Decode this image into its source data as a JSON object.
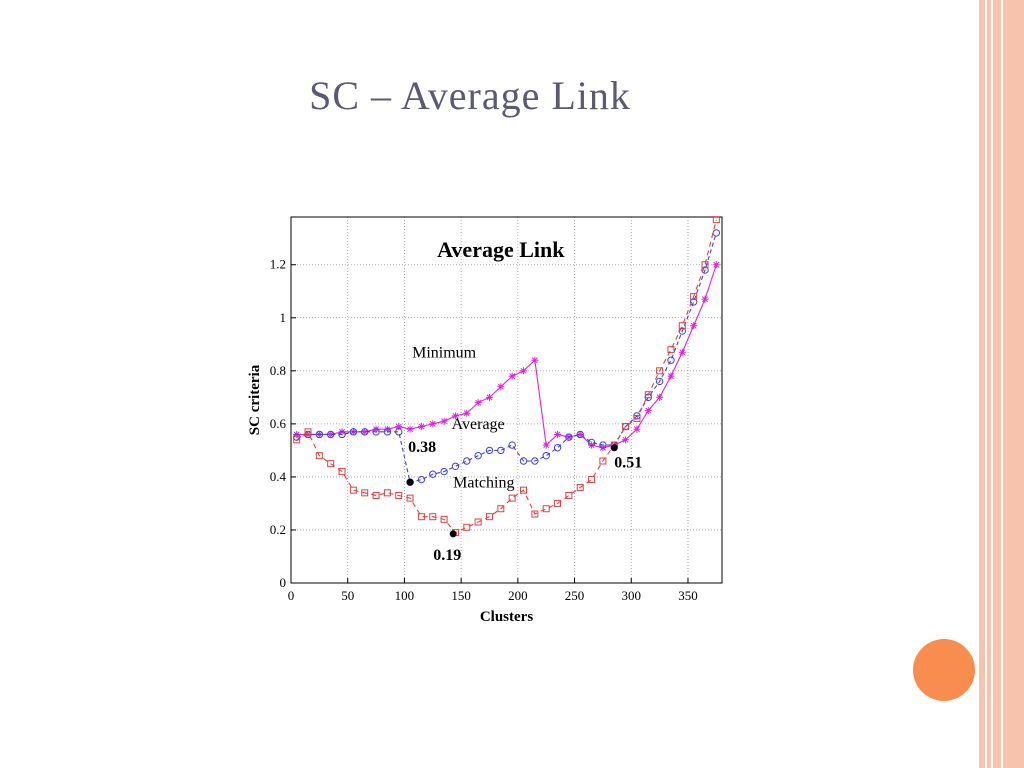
{
  "slide": {
    "title": "SC – Average Link",
    "accent_color": "#f98d4f",
    "stripe_color": "#f7c3ad"
  },
  "chart_data": {
    "type": "line",
    "title": "Average Link",
    "xlabel": "Clusters",
    "ylabel": "SC criteria",
    "xlim": [
      0,
      380
    ],
    "ylim": [
      0,
      1.38
    ],
    "xticks": [
      0,
      50,
      100,
      150,
      200,
      250,
      300,
      350
    ],
    "yticks": [
      0,
      0.2,
      0.4,
      0.6,
      0.8,
      1,
      1.2
    ],
    "grid": true,
    "series": [
      {
        "name": "Minimum",
        "color": "#e020e0",
        "marker": "star",
        "x": [
          5,
          15,
          25,
          35,
          45,
          55,
          65,
          75,
          85,
          95,
          105,
          115,
          125,
          135,
          145,
          155,
          165,
          175,
          185,
          195,
          205,
          215,
          225,
          235,
          245,
          255,
          265,
          275,
          285,
          295,
          305,
          315,
          325,
          335,
          345,
          355,
          365,
          375
        ],
        "values": [
          0.56,
          0.56,
          0.56,
          0.56,
          0.57,
          0.57,
          0.57,
          0.58,
          0.58,
          0.59,
          0.58,
          0.59,
          0.6,
          0.61,
          0.63,
          0.64,
          0.68,
          0.7,
          0.74,
          0.78,
          0.8,
          0.84,
          0.52,
          0.56,
          0.55,
          0.56,
          0.52,
          0.51,
          0.52,
          0.54,
          0.58,
          0.65,
          0.7,
          0.78,
          0.87,
          0.97,
          1.07,
          1.2
        ]
      },
      {
        "name": "Average",
        "color": "#4040e0",
        "marker": "circle",
        "x": [
          5,
          15,
          25,
          35,
          45,
          55,
          65,
          75,
          85,
          95,
          105,
          115,
          125,
          135,
          145,
          155,
          165,
          175,
          185,
          195,
          205,
          215,
          225,
          235,
          245,
          255,
          265,
          275,
          285,
          295,
          305,
          315,
          325,
          335,
          345,
          355,
          365,
          375
        ],
        "values": [
          0.55,
          0.56,
          0.56,
          0.56,
          0.56,
          0.57,
          0.57,
          0.57,
          0.57,
          0.57,
          0.38,
          0.39,
          0.41,
          0.42,
          0.44,
          0.46,
          0.48,
          0.5,
          0.5,
          0.52,
          0.46,
          0.46,
          0.48,
          0.51,
          0.55,
          0.56,
          0.53,
          0.52,
          0.52,
          0.59,
          0.63,
          0.7,
          0.76,
          0.84,
          0.95,
          1.06,
          1.18,
          1.32
        ]
      },
      {
        "name": "Matching",
        "color": "#e04040",
        "marker": "square",
        "x": [
          5,
          15,
          25,
          35,
          45,
          55,
          65,
          75,
          85,
          95,
          105,
          115,
          125,
          135,
          145,
          155,
          165,
          175,
          185,
          195,
          205,
          215,
          225,
          235,
          245,
          255,
          265,
          275,
          285,
          295,
          305,
          315,
          325,
          335,
          345,
          355,
          365,
          375
        ],
        "values": [
          0.54,
          0.57,
          0.48,
          0.45,
          0.42,
          0.35,
          0.34,
          0.33,
          0.34,
          0.33,
          0.32,
          0.25,
          0.25,
          0.24,
          0.19,
          0.21,
          0.23,
          0.25,
          0.28,
          0.32,
          0.35,
          0.26,
          0.28,
          0.3,
          0.33,
          0.36,
          0.39,
          0.46,
          0.52,
          0.59,
          0.62,
          0.71,
          0.8,
          0.88,
          0.97,
          1.08,
          1.2,
          1.37
        ]
      }
    ],
    "highlight_points": [
      {
        "x": 105,
        "y": 0.38,
        "label": "0.38"
      },
      {
        "x": 143,
        "y": 0.185,
        "label": "0.19"
      },
      {
        "x": 285,
        "y": 0.51,
        "label": "0.51"
      }
    ]
  }
}
